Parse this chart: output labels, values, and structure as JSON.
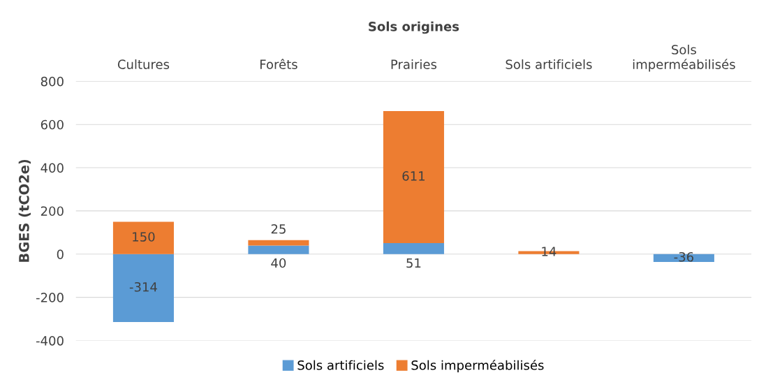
{
  "chart_data": {
    "type": "bar",
    "stacked": true,
    "xlabel": "Sols origines",
    "ylabel": "BGES (tCO2e)",
    "categories": [
      "Cultures",
      "Forêts",
      "Prairies",
      "Sols artificiels",
      "Sols imperméabilisés"
    ],
    "series": [
      {
        "name": "Sols artificiels",
        "color": "#5b9bd5",
        "values": [
          -314,
          40,
          51,
          null,
          -36
        ]
      },
      {
        "name": "Sols imperméabilisés",
        "color": "#ed7d31",
        "values": [
          150,
          25,
          611,
          14,
          null
        ]
      }
    ],
    "ylim": [
      -400,
      800
    ],
    "yticks": [
      -400,
      -200,
      0,
      200,
      400,
      600,
      800
    ],
    "grid": "y",
    "legend": "bottom",
    "data_labels": true
  }
}
